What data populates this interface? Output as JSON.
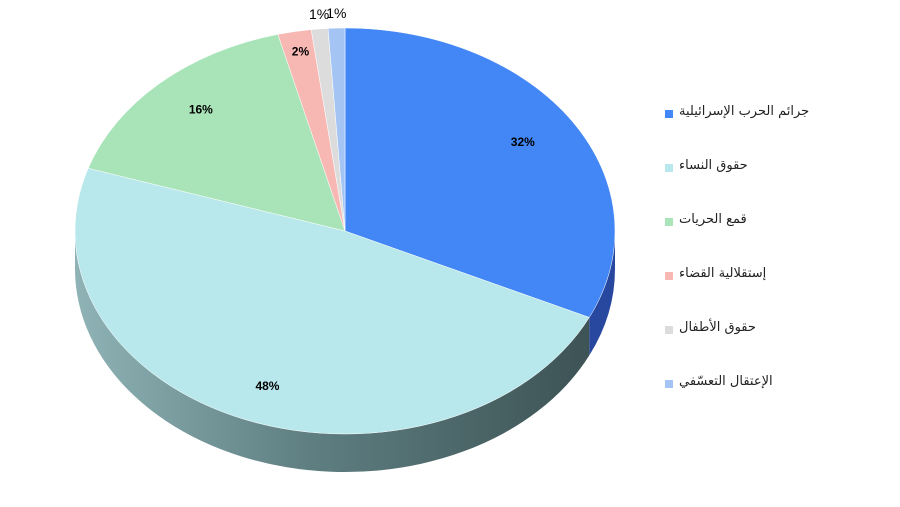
{
  "chart_data": {
    "type": "pie",
    "title": "",
    "categories": [
      "جرائم الحرب الإسرائيلية",
      "حقوق النساء",
      "قمع الحريات",
      "إستقلالية القضاء",
      "حقوق الأطفال",
      "الإعتقال التعسّفي"
    ],
    "values": [
      32,
      48,
      16,
      2,
      1,
      1
    ],
    "labels": [
      "32%",
      "48%",
      "16%",
      "2%",
      "1%",
      "1%"
    ],
    "colors": [
      "#4287f5",
      "#b8e8ec",
      "#a8e4b8",
      "#f7b8b4",
      "#dcdcdc",
      "#a4c4f4"
    ],
    "side_colors": [
      "#2848a0",
      "#5e8c92",
      "#5e8c92",
      "#5e8c92",
      "#5e8c92",
      "#5e8c92"
    ],
    "legend_position": "right",
    "style": "3d"
  }
}
